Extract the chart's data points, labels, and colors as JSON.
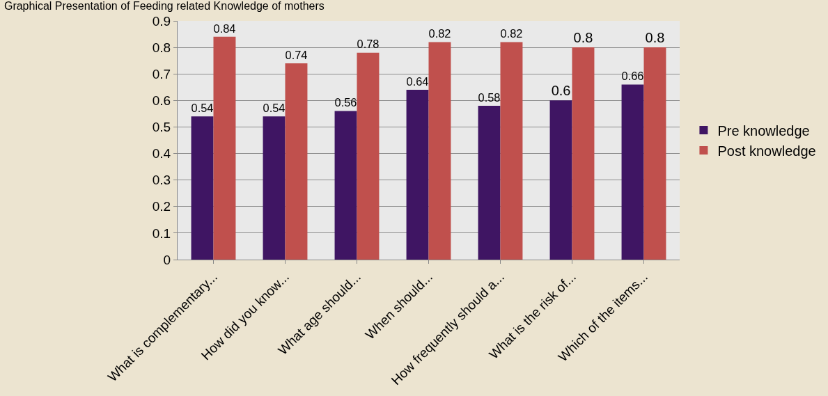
{
  "chart_data": {
    "type": "bar",
    "title": "Graphical Presentation of Feeding related Knowledge of mothers",
    "categories": [
      "What is complementary...",
      "How did you know...",
      "What age should...",
      "When should...",
      "How frequently should a...",
      "What is the risk of...",
      "Which of the items..."
    ],
    "series": [
      {
        "name": "Pre knowledge",
        "color": "#3f1563",
        "values": [
          0.54,
          0.54,
          0.56,
          0.64,
          0.58,
          0.6,
          0.66
        ]
      },
      {
        "name": "Post knowledge",
        "color": "#c0504d",
        "values": [
          0.84,
          0.74,
          0.78,
          0.82,
          0.82,
          0.8,
          0.8
        ]
      }
    ],
    "ylim": [
      0,
      0.9
    ],
    "yticks": [
      0,
      0.1,
      0.2,
      0.3,
      0.4,
      0.5,
      0.6,
      0.7,
      0.8,
      0.9
    ],
    "grid": "y",
    "legend": "right",
    "data_labels": true
  }
}
